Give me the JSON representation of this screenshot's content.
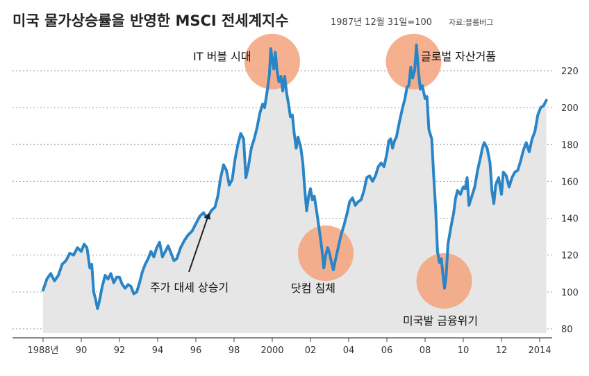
{
  "chart_data": {
    "type": "line",
    "title": "미국 물가상승률을 반영한 MSCI 전세계지수",
    "subtitle": "1987년 12월 31일=100",
    "source": "자료:블룸버그",
    "xlim": [
      1987.8,
      2014.5
    ],
    "ylim": [
      80,
      228
    ],
    "yticks": [
      80,
      100,
      120,
      140,
      160,
      180,
      200,
      220
    ],
    "xtick_labels": [
      {
        "x": 1988,
        "label": "1988년"
      },
      {
        "x": 1990,
        "label": "90"
      },
      {
        "x": 1992,
        "label": "92"
      },
      {
        "x": 1994,
        "label": "94"
      },
      {
        "x": 1996,
        "label": "96"
      },
      {
        "x": 1998,
        "label": "98"
      },
      {
        "x": 2000,
        "label": "2000"
      },
      {
        "x": 2002,
        "label": "02"
      },
      {
        "x": 2004,
        "label": "04"
      },
      {
        "x": 2006,
        "label": "06"
      },
      {
        "x": 2008,
        "label": "08"
      },
      {
        "x": 2010,
        "label": "10"
      },
      {
        "x": 2012,
        "label": "12"
      },
      {
        "x": 2014,
        "label": "2014"
      }
    ],
    "grid": true,
    "area_fill": true,
    "series": [
      {
        "color": "#2a85c6",
        "points": [
          [
            1988.0,
            101
          ],
          [
            1988.2,
            107
          ],
          [
            1988.4,
            110
          ],
          [
            1988.6,
            106
          ],
          [
            1988.8,
            109
          ],
          [
            1989.0,
            115
          ],
          [
            1989.2,
            117
          ],
          [
            1989.4,
            121
          ],
          [
            1989.6,
            120
          ],
          [
            1989.8,
            124
          ],
          [
            1990.0,
            122
          ],
          [
            1990.15,
            126
          ],
          [
            1990.3,
            124
          ],
          [
            1990.45,
            113
          ],
          [
            1990.55,
            115
          ],
          [
            1990.65,
            100
          ],
          [
            1990.75,
            96
          ],
          [
            1990.85,
            91
          ],
          [
            1990.95,
            95
          ],
          [
            1991.1,
            103
          ],
          [
            1991.25,
            109
          ],
          [
            1991.4,
            107
          ],
          [
            1991.55,
            110
          ],
          [
            1991.7,
            105
          ],
          [
            1991.85,
            108
          ],
          [
            1992.0,
            108
          ],
          [
            1992.15,
            104
          ],
          [
            1992.3,
            102
          ],
          [
            1992.45,
            104
          ],
          [
            1992.6,
            103
          ],
          [
            1992.75,
            99
          ],
          [
            1992.9,
            100
          ],
          [
            1993.05,
            105
          ],
          [
            1993.2,
            111
          ],
          [
            1993.35,
            115
          ],
          [
            1993.5,
            118
          ],
          [
            1993.65,
            122
          ],
          [
            1993.8,
            119
          ],
          [
            1993.95,
            124
          ],
          [
            1994.1,
            127
          ],
          [
            1994.25,
            119
          ],
          [
            1994.4,
            122
          ],
          [
            1994.55,
            125
          ],
          [
            1994.7,
            121
          ],
          [
            1994.85,
            117
          ],
          [
            1995.0,
            118
          ],
          [
            1995.2,
            124
          ],
          [
            1995.4,
            128
          ],
          [
            1995.6,
            131
          ],
          [
            1995.8,
            133
          ],
          [
            1996.0,
            137
          ],
          [
            1996.2,
            141
          ],
          [
            1996.4,
            143
          ],
          [
            1996.6,
            140
          ],
          [
            1996.8,
            144
          ],
          [
            1997.0,
            146
          ],
          [
            1997.15,
            152
          ],
          [
            1997.3,
            162
          ],
          [
            1997.45,
            169
          ],
          [
            1997.6,
            166
          ],
          [
            1997.75,
            158
          ],
          [
            1997.9,
            161
          ],
          [
            1998.05,
            172
          ],
          [
            1998.2,
            180
          ],
          [
            1998.35,
            186
          ],
          [
            1998.5,
            183
          ],
          [
            1998.62,
            162
          ],
          [
            1998.75,
            168
          ],
          [
            1998.9,
            178
          ],
          [
            1999.05,
            183
          ],
          [
            1999.2,
            189
          ],
          [
            1999.35,
            197
          ],
          [
            1999.5,
            202
          ],
          [
            1999.6,
            200
          ],
          [
            1999.75,
            210
          ],
          [
            1999.85,
            218
          ],
          [
            1999.92,
            232
          ],
          [
            2000.0,
            226
          ],
          [
            2000.08,
            221
          ],
          [
            2000.16,
            230
          ],
          [
            2000.25,
            220
          ],
          [
            2000.35,
            214
          ],
          [
            2000.45,
            217
          ],
          [
            2000.55,
            209
          ],
          [
            2000.65,
            217
          ],
          [
            2000.75,
            208
          ],
          [
            2000.85,
            202
          ],
          [
            2000.95,
            195
          ],
          [
            2001.05,
            196
          ],
          [
            2001.15,
            186
          ],
          [
            2001.25,
            178
          ],
          [
            2001.35,
            184
          ],
          [
            2001.5,
            178
          ],
          [
            2001.6,
            170
          ],
          [
            2001.7,
            156
          ],
          [
            2001.8,
            144
          ],
          [
            2001.9,
            152
          ],
          [
            2002.0,
            156
          ],
          [
            2002.1,
            150
          ],
          [
            2002.2,
            152
          ],
          [
            2002.35,
            142
          ],
          [
            2002.5,
            131
          ],
          [
            2002.6,
            123
          ],
          [
            2002.7,
            113
          ],
          [
            2002.8,
            120
          ],
          [
            2002.9,
            124
          ],
          [
            2003.0,
            121
          ],
          [
            2003.1,
            116
          ],
          [
            2003.2,
            112
          ],
          [
            2003.3,
            117
          ],
          [
            2003.45,
            124
          ],
          [
            2003.6,
            131
          ],
          [
            2003.75,
            136
          ],
          [
            2003.9,
            142
          ],
          [
            2004.05,
            149
          ],
          [
            2004.2,
            151
          ],
          [
            2004.35,
            147
          ],
          [
            2004.5,
            149
          ],
          [
            2004.65,
            150
          ],
          [
            2004.8,
            155
          ],
          [
            2004.95,
            162
          ],
          [
            2005.1,
            163
          ],
          [
            2005.25,
            160
          ],
          [
            2005.4,
            163
          ],
          [
            2005.55,
            168
          ],
          [
            2005.7,
            170
          ],
          [
            2005.85,
            168
          ],
          [
            2006.0,
            175
          ],
          [
            2006.1,
            182
          ],
          [
            2006.2,
            183
          ],
          [
            2006.3,
            178
          ],
          [
            2006.4,
            182
          ],
          [
            2006.5,
            184
          ],
          [
            2006.65,
            192
          ],
          [
            2006.8,
            199
          ],
          [
            2006.95,
            205
          ],
          [
            2007.05,
            211
          ],
          [
            2007.15,
            212
          ],
          [
            2007.25,
            222
          ],
          [
            2007.35,
            216
          ],
          [
            2007.45,
            220
          ],
          [
            2007.55,
            234
          ],
          [
            2007.65,
            220
          ],
          [
            2007.75,
            210
          ],
          [
            2007.85,
            212
          ],
          [
            2008.0,
            205
          ],
          [
            2008.1,
            206
          ],
          [
            2008.2,
            188
          ],
          [
            2008.35,
            183
          ],
          [
            2008.45,
            163
          ],
          [
            2008.55,
            146
          ],
          [
            2008.65,
            122
          ],
          [
            2008.75,
            116
          ],
          [
            2008.85,
            118
          ],
          [
            2008.95,
            108
          ],
          [
            2009.02,
            102
          ],
          [
            2009.1,
            108
          ],
          [
            2009.2,
            126
          ],
          [
            2009.35,
            135
          ],
          [
            2009.5,
            143
          ],
          [
            2009.6,
            151
          ],
          [
            2009.7,
            155
          ],
          [
            2009.85,
            153
          ],
          [
            2010.0,
            157
          ],
          [
            2010.1,
            156
          ],
          [
            2010.2,
            162
          ],
          [
            2010.3,
            147
          ],
          [
            2010.45,
            152
          ],
          [
            2010.6,
            157
          ],
          [
            2010.75,
            166
          ],
          [
            2010.9,
            173
          ],
          [
            2011.0,
            178
          ],
          [
            2011.1,
            181
          ],
          [
            2011.25,
            178
          ],
          [
            2011.4,
            170
          ],
          [
            2011.5,
            155
          ],
          [
            2011.6,
            148
          ],
          [
            2011.7,
            158
          ],
          [
            2011.85,
            162
          ],
          [
            2012.0,
            153
          ],
          [
            2012.1,
            165
          ],
          [
            2012.25,
            163
          ],
          [
            2012.4,
            157
          ],
          [
            2012.55,
            162
          ],
          [
            2012.7,
            165
          ],
          [
            2012.85,
            166
          ],
          [
            2013.0,
            171
          ],
          [
            2013.15,
            177
          ],
          [
            2013.3,
            181
          ],
          [
            2013.45,
            176
          ],
          [
            2013.6,
            183
          ],
          [
            2013.75,
            187
          ],
          [
            2013.9,
            196
          ],
          [
            2014.05,
            200
          ],
          [
            2014.2,
            201
          ],
          [
            2014.35,
            204
          ]
        ]
      }
    ],
    "annotations": [
      {
        "text": "IT 버블 시대",
        "circle": [
          2000.0,
          225
        ],
        "color": "#f4a57f"
      },
      {
        "text": "글로벌 자산거품",
        "circle": [
          2007.4,
          225
        ],
        "color": "#f4a57f"
      },
      {
        "text": "닷컴 침체",
        "circle": [
          2002.8,
          121
        ],
        "color": "#f4a57f"
      },
      {
        "text": "미국발 금융위기",
        "circle": [
          2009.0,
          106
        ],
        "color": "#f4a57f"
      },
      {
        "text": "주가 대세 상승기",
        "arrow_to": [
          1996.7,
          143
        ]
      }
    ]
  }
}
